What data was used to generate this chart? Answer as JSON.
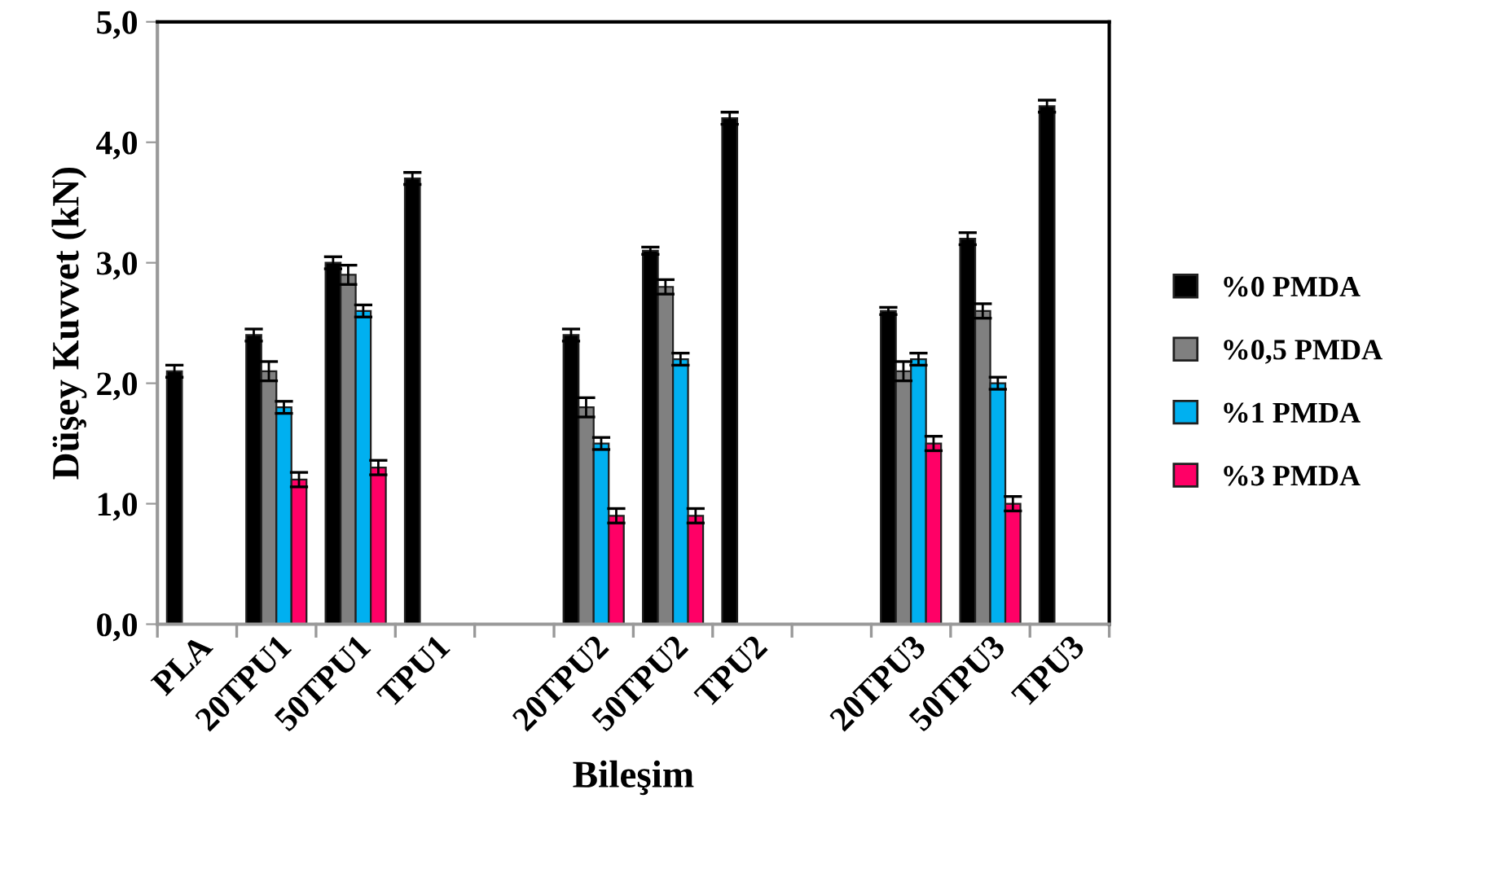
{
  "chart_data": {
    "type": "bar",
    "xlabel": "Bileşim",
    "ylabel": "Düşey Kuvvet (kN)",
    "categories": [
      "PLA",
      "20TPU1",
      "50TPU1",
      "TPU1",
      null,
      "20TPU2",
      "50TPU2",
      "TPU2",
      null,
      "20TPU3",
      "50TPU3",
      "TPU3"
    ],
    "series": [
      {
        "name": "%0 PMDA",
        "color": "#000000",
        "values": [
          2.1,
          2.4,
          3.0,
          3.7,
          null,
          2.4,
          3.1,
          4.2,
          null,
          2.6,
          3.2,
          4.3
        ],
        "errors": [
          0.05,
          0.05,
          0.05,
          0.05,
          null,
          0.05,
          0.03,
          0.05,
          null,
          0.03,
          0.05,
          0.05
        ]
      },
      {
        "name": "%0,5 PMDA",
        "color": "#808080",
        "values": [
          null,
          2.1,
          2.9,
          null,
          null,
          1.8,
          2.8,
          null,
          null,
          2.1,
          2.6,
          null
        ],
        "errors": [
          null,
          0.08,
          0.08,
          null,
          null,
          0.08,
          0.06,
          null,
          null,
          0.08,
          0.06,
          null
        ]
      },
      {
        "name": "%1 PMDA",
        "color": "#00b0f0",
        "values": [
          null,
          1.8,
          2.6,
          null,
          null,
          1.5,
          2.2,
          null,
          null,
          2.2,
          2.0,
          null
        ],
        "errors": [
          null,
          0.05,
          0.05,
          null,
          null,
          0.05,
          0.05,
          null,
          null,
          0.05,
          0.05,
          null
        ]
      },
      {
        "name": "%3 PMDA",
        "color": "#ff0066",
        "values": [
          null,
          1.2,
          1.3,
          null,
          null,
          0.9,
          0.9,
          null,
          null,
          1.5,
          1.0,
          null
        ],
        "errors": [
          null,
          0.06,
          0.06,
          null,
          null,
          0.06,
          0.06,
          null,
          null,
          0.06,
          0.06,
          null
        ]
      }
    ],
    "ylim": [
      0,
      5
    ],
    "yticks": [
      {
        "value": 0,
        "label": "0,0"
      },
      {
        "value": 1,
        "label": "1,0"
      },
      {
        "value": 2,
        "label": "2,0"
      },
      {
        "value": 3,
        "label": "3,0"
      },
      {
        "value": 4,
        "label": "4,0"
      },
      {
        "value": 5,
        "label": "5,0"
      }
    ],
    "grid": false,
    "legend": "right"
  }
}
